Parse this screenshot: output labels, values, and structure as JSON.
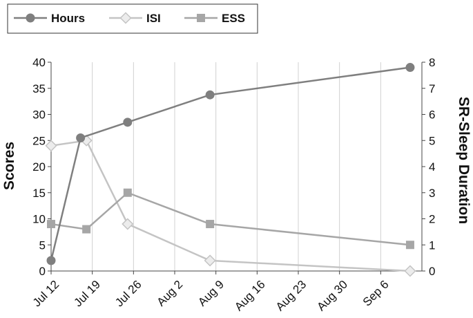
{
  "chart_data": {
    "type": "line",
    "x_ticks": [
      "Jul 12",
      "Jul 19",
      "Jul 26",
      "Aug 2",
      "Aug 9",
      "Aug 16",
      "Aug 23",
      "Aug 30",
      "Sep 6"
    ],
    "xlim": [
      "2020-07-12",
      "2020-09-13"
    ],
    "ylabel_left": "Scores",
    "ylim_left": [
      0,
      40
    ],
    "yticks_left": [
      0,
      5,
      10,
      15,
      20,
      25,
      30,
      35,
      40
    ],
    "ylabel_right": "SR-Sleep Duration",
    "ylim_right": [
      0,
      8
    ],
    "yticks_right": [
      0,
      1,
      2,
      3,
      4,
      5,
      6,
      7,
      8
    ],
    "grid": "vertical",
    "legend": "top-left",
    "series": [
      {
        "name": "Hours",
        "axis": "right",
        "marker": "circle",
        "color": "#7f7f7f",
        "points": [
          {
            "x": "2020-07-12",
            "y": 0.4
          },
          {
            "x": "2020-07-17",
            "y": 5.1
          },
          {
            "x": "2020-07-25",
            "y": 5.7
          },
          {
            "x": "2020-08-08",
            "y": 6.75
          },
          {
            "x": "2020-09-11",
            "y": 7.8
          }
        ]
      },
      {
        "name": "ISI",
        "axis": "left",
        "marker": "diamond",
        "color": "#c4c4c4",
        "points": [
          {
            "x": "2020-07-12",
            "y": 24
          },
          {
            "x": "2020-07-18",
            "y": 25
          },
          {
            "x": "2020-07-25",
            "y": 9
          },
          {
            "x": "2020-08-08",
            "y": 2
          },
          {
            "x": "2020-09-11",
            "y": 0
          }
        ]
      },
      {
        "name": "ESS",
        "axis": "left",
        "marker": "square",
        "color": "#a6a6a6",
        "points": [
          {
            "x": "2020-07-12",
            "y": 9
          },
          {
            "x": "2020-07-18",
            "y": 8
          },
          {
            "x": "2020-07-25",
            "y": 15
          },
          {
            "x": "2020-08-08",
            "y": 9
          },
          {
            "x": "2020-09-11",
            "y": 5
          }
        ]
      }
    ]
  }
}
